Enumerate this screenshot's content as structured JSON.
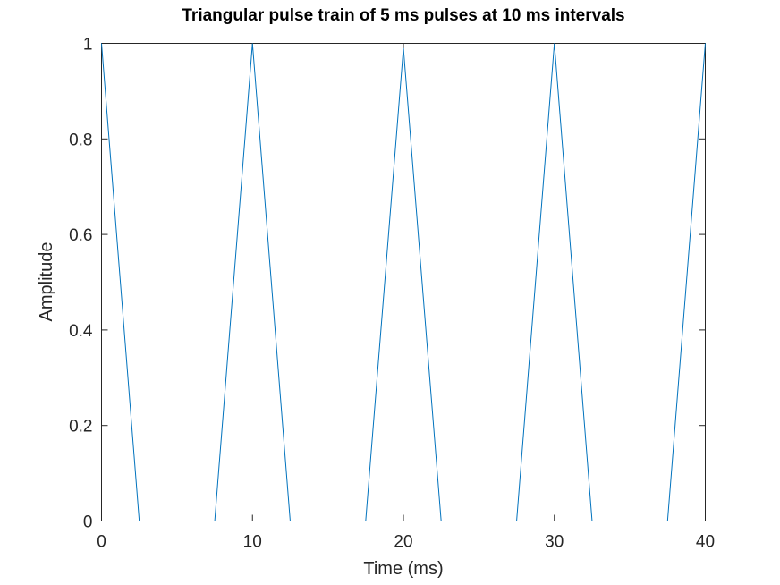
{
  "chart_data": {
    "type": "line",
    "title": "Triangular pulse train of 5 ms pulses at 10 ms intervals",
    "xlabel": "Time (ms)",
    "ylabel": "Amplitude",
    "xlim": [
      0,
      40
    ],
    "ylim": [
      0,
      1
    ],
    "xticks": [
      0,
      10,
      20,
      30,
      40
    ],
    "xtick_labels": [
      "0",
      "10",
      "20",
      "30",
      "40"
    ],
    "yticks": [
      0,
      0.2,
      0.4,
      0.6,
      0.8,
      1
    ],
    "ytick_labels": [
      "0",
      "0.2",
      "0.4",
      "0.6",
      "0.8",
      "1"
    ],
    "grid": false,
    "color": "#0072bd",
    "series": [
      {
        "x": [
          0,
          2.5,
          7.5,
          10,
          12.5,
          17.5,
          20,
          22.5,
          27.5,
          30,
          32.5,
          37.5,
          40
        ],
        "y": [
          1,
          0,
          0,
          1,
          0,
          0,
          0.99,
          0,
          0,
          1,
          0,
          0,
          1
        ]
      }
    ]
  }
}
